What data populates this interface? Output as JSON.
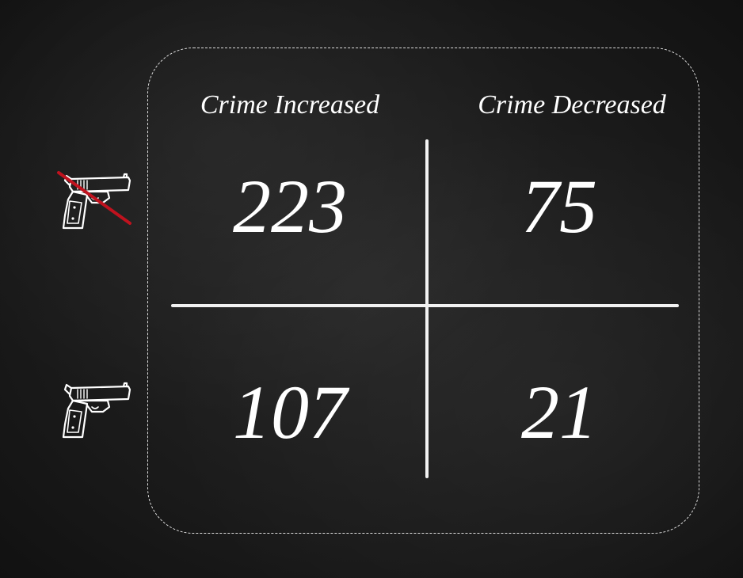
{
  "columns": {
    "left_label": "Crime Increased",
    "right_label": "Crime Decreased"
  },
  "rows": {
    "top_icon": "no-gun-icon",
    "bottom_icon": "gun-icon"
  },
  "cells": {
    "top_left": "223",
    "top_right": "75",
    "bottom_left": "107",
    "bottom_right": "21"
  },
  "colors": {
    "background": "#1b1b1b",
    "text": "#ffffff",
    "strike": "#c0121e"
  }
}
